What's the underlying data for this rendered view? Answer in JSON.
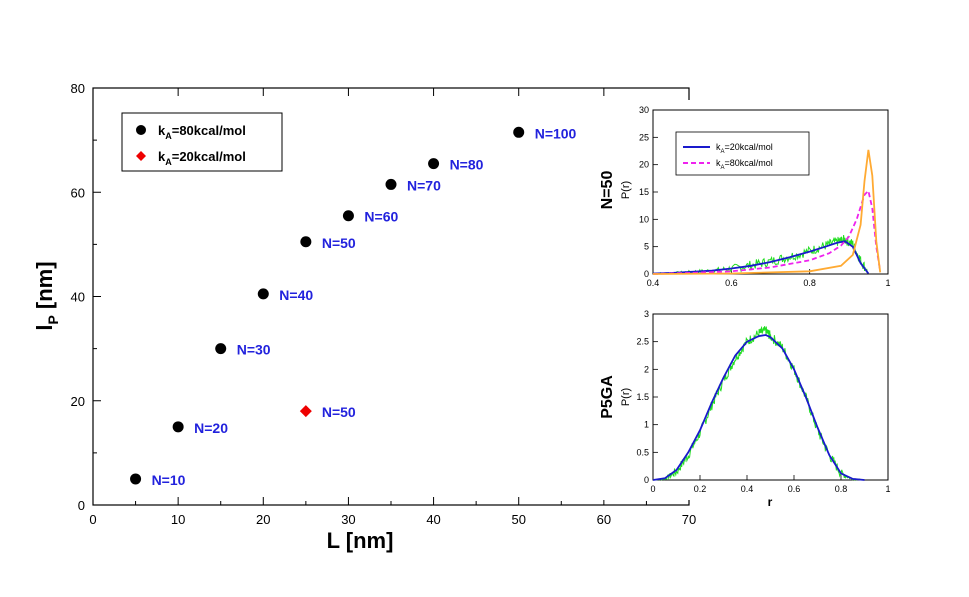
{
  "chart_data": [
    {
      "type": "scatter",
      "xlabel": "L [nm]",
      "ylabel_main": "l",
      "ylabel_sub": "P",
      "ylabel_unit": "[nm]",
      "xlim": [
        0,
        70
      ],
      "ylim": [
        0,
        80
      ],
      "xticks": [
        0,
        10,
        20,
        30,
        40,
        50,
        60,
        70
      ],
      "yticks": [
        0,
        20,
        40,
        60,
        80
      ],
      "series": [
        {
          "name": "kA=80kcal/mol",
          "legend_main": "k",
          "legend_sub": "A",
          "legend_rest": "=80kcal/mol",
          "color": "#000000",
          "marker": "circle",
          "points": [
            {
              "x": 5,
              "y": 5,
              "label": "N=10"
            },
            {
              "x": 10,
              "y": 15,
              "label": "N=20"
            },
            {
              "x": 15,
              "y": 30,
              "label": "N=30"
            },
            {
              "x": 20,
              "y": 40.5,
              "label": "N=40"
            },
            {
              "x": 25,
              "y": 50.5,
              "label": "N=50"
            },
            {
              "x": 30,
              "y": 55.5,
              "label": "N=60"
            },
            {
              "x": 35,
              "y": 61.5,
              "label": "N=70"
            },
            {
              "x": 40,
              "y": 65.5,
              "label": "N=80"
            },
            {
              "x": 50,
              "y": 71.5,
              "label": "N=100"
            }
          ]
        },
        {
          "name": "kA=20kcal/mol",
          "legend_main": "k",
          "legend_sub": "A",
          "legend_rest": "=20kcal/mol",
          "color": "#ee0000",
          "marker": "diamond",
          "points": [
            {
              "x": 25,
              "y": 18,
              "label": "N=50"
            }
          ]
        }
      ],
      "label_color": "#2222dd"
    },
    {
      "type": "line",
      "panel_label": "N=50",
      "ylabel": "P(r)",
      "xlim": [
        0.4,
        1
      ],
      "ylim": [
        0,
        30
      ],
      "xticks": [
        "0.4",
        "0.6",
        "0.8",
        "1"
      ],
      "yticks": [
        "0",
        "5",
        "10",
        "15",
        "20",
        "25",
        "30"
      ],
      "legend": [
        {
          "main": "k",
          "sub": "A",
          "rest": "=20kcal/mol",
          "color": "#1a1acc",
          "dash": "solid"
        },
        {
          "main": "k",
          "sub": "A",
          "rest": "=80kcal/mol",
          "color": "#ee22ee",
          "dash": "dashed"
        }
      ],
      "series": [
        {
          "name": "simulation noisy",
          "color": "#22dd22",
          "x": [
            0.4,
            0.45,
            0.5,
            0.55,
            0.6,
            0.65,
            0.7,
            0.75,
            0.8,
            0.84,
            0.87,
            0.89,
            0.91,
            0.93,
            0.95
          ],
          "y": [
            0.1,
            0.2,
            0.4,
            0.6,
            1.0,
            1.6,
            2.3,
            3.2,
            4.2,
            5.2,
            5.9,
            6.3,
            5.5,
            2.5,
            0.2
          ]
        },
        {
          "name": "kA=20kcal/mol",
          "color": "#1a1acc",
          "x": [
            0.4,
            0.45,
            0.5,
            0.55,
            0.6,
            0.65,
            0.7,
            0.75,
            0.8,
            0.84,
            0.87,
            0.89,
            0.91,
            0.93,
            0.95
          ],
          "y": [
            0.1,
            0.2,
            0.4,
            0.6,
            1.0,
            1.5,
            2.2,
            3.1,
            4.1,
            5.0,
            5.7,
            6.0,
            5.0,
            2.0,
            0.1
          ]
        },
        {
          "name": "kA=80kcal/mol",
          "color": "#ee22ee",
          "x": [
            0.4,
            0.5,
            0.6,
            0.7,
            0.8,
            0.85,
            0.88,
            0.9,
            0.92,
            0.94,
            0.95,
            0.96,
            0.97,
            0.98
          ],
          "y": [
            0,
            0.2,
            0.5,
            1.2,
            2.5,
            3.8,
            5.2,
            6.8,
            10.0,
            14.5,
            15.2,
            12.0,
            5.0,
            0.5
          ]
        },
        {
          "name": "orange curve",
          "color": "#ffaa33",
          "x": [
            0.4,
            0.6,
            0.8,
            0.88,
            0.91,
            0.93,
            0.94,
            0.95,
            0.96,
            0.97,
            0.98
          ],
          "y": [
            0,
            0.1,
            0.5,
            1.5,
            3.5,
            9.0,
            17.0,
            22.7,
            18.0,
            6.0,
            0.3
          ]
        }
      ]
    },
    {
      "type": "line",
      "panel_label": "P5GA",
      "ylabel": "P(r)",
      "xlabel": "r",
      "xlim": [
        0,
        1
      ],
      "ylim": [
        0,
        3
      ],
      "xticks": [
        "0",
        "0.2",
        "0.4",
        "0.6",
        "0.8",
        "1"
      ],
      "yticks": [
        "0",
        "0.5",
        "1",
        "1.5",
        "2",
        "2.5",
        "3"
      ],
      "series": [
        {
          "name": "simulation noisy",
          "color": "#22dd22",
          "x": [
            0,
            0.05,
            0.1,
            0.15,
            0.2,
            0.25,
            0.3,
            0.35,
            0.4,
            0.45,
            0.48,
            0.5,
            0.55,
            0.6,
            0.65,
            0.7,
            0.75,
            0.8,
            0.85,
            0.9
          ],
          "y": [
            0,
            0.02,
            0.15,
            0.45,
            0.85,
            1.35,
            1.8,
            2.2,
            2.5,
            2.65,
            2.7,
            2.6,
            2.4,
            2.0,
            1.5,
            0.9,
            0.45,
            0.12,
            0.02,
            0
          ]
        },
        {
          "name": "fit",
          "color": "#1a1acc",
          "x": [
            0,
            0.05,
            0.1,
            0.15,
            0.2,
            0.25,
            0.3,
            0.35,
            0.4,
            0.45,
            0.48,
            0.5,
            0.55,
            0.6,
            0.65,
            0.7,
            0.75,
            0.8,
            0.85,
            0.9
          ],
          "y": [
            0,
            0.03,
            0.18,
            0.5,
            0.9,
            1.4,
            1.85,
            2.25,
            2.5,
            2.6,
            2.62,
            2.58,
            2.38,
            2.0,
            1.5,
            0.95,
            0.45,
            0.12,
            0.02,
            0
          ]
        }
      ]
    }
  ],
  "top_labels": {
    "kA80": "kA=80kcal/mol",
    "kA20": "kA=20kcal/mol"
  }
}
